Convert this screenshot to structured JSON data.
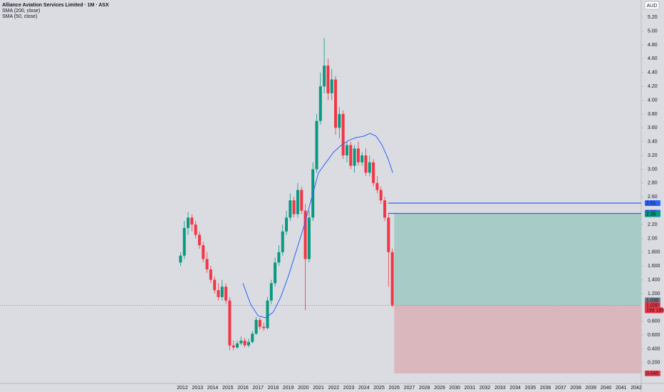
{
  "chart_data": {
    "type": "candlestick",
    "title": "Alliance Aviation Services Limited · 1M · ASX",
    "indicators": [
      "SMA (200, close)",
      "SMA (50, close)"
    ],
    "currency": "AUD",
    "up_color": "#089981",
    "down_color": "#f23645",
    "x": [
      2011.875,
      2012.125,
      2012.375,
      2012.625,
      2012.875,
      2013.125,
      2013.375,
      2013.625,
      2013.875,
      2014.125,
      2014.375,
      2014.625,
      2014.875,
      2015.125,
      2015.375,
      2015.625,
      2015.875,
      2016.125,
      2016.375,
      2016.625,
      2016.875,
      2017.125,
      2017.375,
      2017.625,
      2017.875,
      2018.125,
      2018.375,
      2018.625,
      2018.875,
      2019.125,
      2019.375,
      2019.625,
      2019.875,
      2020.125,
      2020.375,
      2020.625,
      2020.875,
      2021.125,
      2021.375,
      2021.625,
      2021.875,
      2022.125,
      2022.375,
      2022.625,
      2022.875,
      2023.125,
      2023.375,
      2023.625,
      2023.875,
      2024.125,
      2024.375,
      2024.625,
      2024.875,
      2025.125,
      2025.375,
      2025.625,
      2025.875
    ],
    "open": [
      1.65,
      1.75,
      2.15,
      2.3,
      2.2,
      2.05,
      1.9,
      1.7,
      1.55,
      1.4,
      1.25,
      1.15,
      1.3,
      1.1,
      0.45,
      0.42,
      0.48,
      0.52,
      0.45,
      0.5,
      0.62,
      0.82,
      0.72,
      0.7,
      1.1,
      1.35,
      1.65,
      1.8,
      2.1,
      2.3,
      2.55,
      2.35,
      2.7,
      2.4,
      1.7,
      2.3,
      3.0,
      3.7,
      4.2,
      4.5,
      4.1,
      4.3,
      3.6,
      3.8,
      3.2,
      3.35,
      3.05,
      3.3,
      3.1,
      3.2,
      2.95,
      3.1,
      2.8,
      2.7,
      2.55,
      2.3,
      1.8
    ],
    "high": [
      1.8,
      2.25,
      2.38,
      2.35,
      2.25,
      2.1,
      1.95,
      1.8,
      1.6,
      1.45,
      1.35,
      1.4,
      1.35,
      1.15,
      0.52,
      0.52,
      0.58,
      0.56,
      0.55,
      0.66,
      0.86,
      0.85,
      0.78,
      1.15,
      1.4,
      1.72,
      1.9,
      2.2,
      2.4,
      2.65,
      2.6,
      2.8,
      2.75,
      2.5,
      2.4,
      3.1,
      3.8,
      4.4,
      4.9,
      4.6,
      4.45,
      4.35,
      3.9,
      3.85,
      3.4,
      3.4,
      3.35,
      3.4,
      3.25,
      3.3,
      3.2,
      3.15,
      2.9,
      2.75,
      2.6,
      2.35,
      1.85
    ],
    "low": [
      1.6,
      1.7,
      2.05,
      2.1,
      2.0,
      1.85,
      1.65,
      1.5,
      1.35,
      1.2,
      1.1,
      1.1,
      1.05,
      0.38,
      0.38,
      0.4,
      0.45,
      0.42,
      0.42,
      0.48,
      0.6,
      0.68,
      0.66,
      0.68,
      1.05,
      1.3,
      1.6,
      1.75,
      2.05,
      2.25,
      2.3,
      2.3,
      2.35,
      0.96,
      1.65,
      2.25,
      2.95,
      3.65,
      4.1,
      4.0,
      4.0,
      3.5,
      3.45,
      3.15,
      3.1,
      3.0,
      2.95,
      3.05,
      3.05,
      2.9,
      2.9,
      2.75,
      2.65,
      2.5,
      2.25,
      1.3,
      1.0
    ],
    "close": [
      1.75,
      2.15,
      2.3,
      2.2,
      2.05,
      1.9,
      1.7,
      1.55,
      1.4,
      1.25,
      1.15,
      1.3,
      1.1,
      0.45,
      0.42,
      0.48,
      0.52,
      0.45,
      0.5,
      0.62,
      0.82,
      0.72,
      0.7,
      1.1,
      1.35,
      1.65,
      1.8,
      2.1,
      2.3,
      2.55,
      2.35,
      2.7,
      2.4,
      1.7,
      2.3,
      3.0,
      3.7,
      4.2,
      4.5,
      4.1,
      4.3,
      3.6,
      3.8,
      3.2,
      3.35,
      3.05,
      3.3,
      3.1,
      3.2,
      2.95,
      3.1,
      2.8,
      2.7,
      2.55,
      2.3,
      1.8,
      1.03
    ],
    "sma": {
      "name": "SMA (50, close)",
      "color": "#2962ff",
      "x": [
        2016.0,
        2016.5,
        2017.0,
        2017.5,
        2018.0,
        2018.5,
        2019.0,
        2019.5,
        2020.0,
        2020.5,
        2021.0,
        2021.5,
        2022.0,
        2022.5,
        2023.0,
        2023.5,
        2024.0,
        2024.4,
        2024.8,
        2025.2,
        2025.6,
        2025.9
      ],
      "values": [
        1.35,
        1.05,
        0.88,
        0.85,
        0.93,
        1.15,
        1.45,
        1.8,
        2.15,
        2.55,
        2.95,
        3.1,
        3.25,
        3.35,
        3.42,
        3.46,
        3.48,
        3.52,
        3.48,
        3.35,
        3.15,
        2.95
      ]
    },
    "xlim": [
      1999.94,
      2042.33
    ],
    "ylim": [
      -0.09,
      5.45
    ],
    "xticks": [
      2012,
      2013,
      2014,
      2015,
      2016,
      2017,
      2018,
      2019,
      2020,
      2021,
      2022,
      2023,
      2024,
      2025,
      2026,
      2027,
      2028,
      2029,
      2030,
      2031,
      2032,
      2033,
      2034,
      2035,
      2036,
      2037,
      2038,
      2039,
      2040,
      2041,
      2042
    ],
    "yticks": [
      {
        "value": 5.2,
        "label": "5.20"
      },
      {
        "value": 5,
        "label": "5.00"
      },
      {
        "value": 4.8,
        "label": "4.80"
      },
      {
        "value": 4.6,
        "label": "4.60"
      },
      {
        "value": 4.4,
        "label": "4.40"
      },
      {
        "value": 4.2,
        "label": "4.20"
      },
      {
        "value": 4,
        "label": "4.00"
      },
      {
        "value": 3.8,
        "label": "3.80"
      },
      {
        "value": 3.6,
        "label": "3.60"
      },
      {
        "value": 3.4,
        "label": "3.40"
      },
      {
        "value": 3.2,
        "label": "3.20"
      },
      {
        "value": 3,
        "label": "3.00"
      },
      {
        "value": 2.8,
        "label": "2.80"
      },
      {
        "value": 2.6,
        "label": "2.60"
      },
      {
        "value": 2.2,
        "label": "2.20"
      },
      {
        "value": 2,
        "label": "2.00"
      },
      {
        "value": 1.8,
        "label": "1.800"
      },
      {
        "value": 1.6,
        "label": "1.600"
      },
      {
        "value": 1.4,
        "label": "1.400"
      },
      {
        "value": 1.2,
        "label": "1.200"
      },
      {
        "value": 0.8,
        "label": "0.800"
      },
      {
        "value": 0.6,
        "label": "0.600"
      },
      {
        "value": 0.4,
        "label": "0.400"
      },
      {
        "value": 0.2,
        "label": "0.200"
      }
    ],
    "levels": {
      "start": 2025.6,
      "color": "#2962ff",
      "values": [
        2.51,
        2.36
      ]
    },
    "position": {
      "start": 2026.0,
      "entry": 2.36,
      "current": 1.03,
      "stop": 0.045,
      "profit_color": "#a7cbc6",
      "loss_color": "#d9b7bc"
    },
    "price_labels": [
      {
        "value": 2.51,
        "color": "#2962ff"
      },
      {
        "value": 2.37,
        "color": "#2962ff"
      },
      {
        "value": 2.36,
        "color": "#089981"
      },
      {
        "value": 1.03,
        "label": "1.030",
        "color": "#787b86"
      },
      {
        "value": 1.03,
        "label": "1.030",
        "color": "#f23645"
      },
      {
        "value": 0.045,
        "label": "0.045",
        "color": "#f23645"
      }
    ],
    "countdown": "19d 16h"
  }
}
